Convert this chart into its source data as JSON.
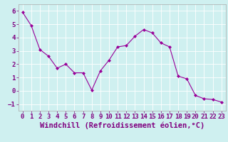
{
  "x": [
    0,
    1,
    2,
    3,
    4,
    5,
    6,
    7,
    8,
    9,
    10,
    11,
    12,
    13,
    14,
    15,
    16,
    17,
    18,
    19,
    20,
    21,
    22,
    23
  ],
  "y": [
    5.9,
    4.9,
    3.1,
    2.6,
    1.7,
    2.0,
    1.35,
    1.35,
    0.05,
    1.5,
    2.3,
    3.3,
    3.4,
    4.1,
    4.6,
    4.35,
    3.6,
    3.3,
    1.1,
    0.9,
    -0.35,
    -0.6,
    -0.65,
    -0.85
  ],
  "line_color": "#990099",
  "marker": "D",
  "marker_size": 2,
  "bg_color": "#cff0f0",
  "grid_color": "#ffffff",
  "xlabel": "Windchill (Refroidissement éolien,°C)",
  "xlabel_color": "#800080",
  "xlabel_fontsize": 7.5,
  "tick_color": "#800080",
  "tick_fontsize": 6.5,
  "ylim": [
    -1.5,
    6.5
  ],
  "xlim": [
    -0.5,
    23.5
  ],
  "yticks": [
    -1,
    0,
    1,
    2,
    3,
    4,
    5,
    6
  ],
  "xticks": [
    0,
    1,
    2,
    3,
    4,
    5,
    6,
    7,
    8,
    9,
    10,
    11,
    12,
    13,
    14,
    15,
    16,
    17,
    18,
    19,
    20,
    21,
    22,
    23
  ],
  "spine_color": "#aaaaaa",
  "bottom_bar_color": "#800080"
}
